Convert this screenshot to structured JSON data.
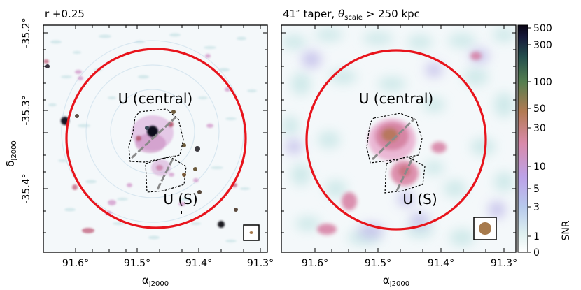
{
  "panels": [
    {
      "title": "r +0.25",
      "region_upper": "U (central)",
      "region_lower": "U (S)",
      "x_ticks": [
        "91.6°",
        "91.5°",
        "91.4°",
        "91.3°"
      ],
      "xlabel": "α",
      "xlabel_sub": "J2000"
    },
    {
      "title_prefix": "41″ taper, ",
      "title_theta": "θ",
      "title_sub": "scale",
      "title_suffix": " > 250 kpc",
      "region_upper": "U (central)",
      "region_lower": "U (S)",
      "x_ticks": [
        "91.6°",
        "91.5°",
        "91.4°",
        "91.3°"
      ],
      "xlabel": "α",
      "xlabel_sub": "J2000"
    }
  ],
  "y_axis": {
    "label": "δ",
    "label_sub": "J2000",
    "ticks": [
      "-35.2°",
      "-35.3°",
      "-35.4°"
    ]
  },
  "colorbar": {
    "label": "SNR",
    "ticks": [
      "500",
      "300",
      "100",
      "50",
      "30",
      "10",
      "5",
      "3",
      "1",
      "0"
    ]
  },
  "colors": {
    "circle": "#e8141c",
    "region_outline": "#000000",
    "dash_line": "#8a8a8a",
    "beam_fill": "#a77a4c",
    "map_background": "#f4f8fa"
  }
}
